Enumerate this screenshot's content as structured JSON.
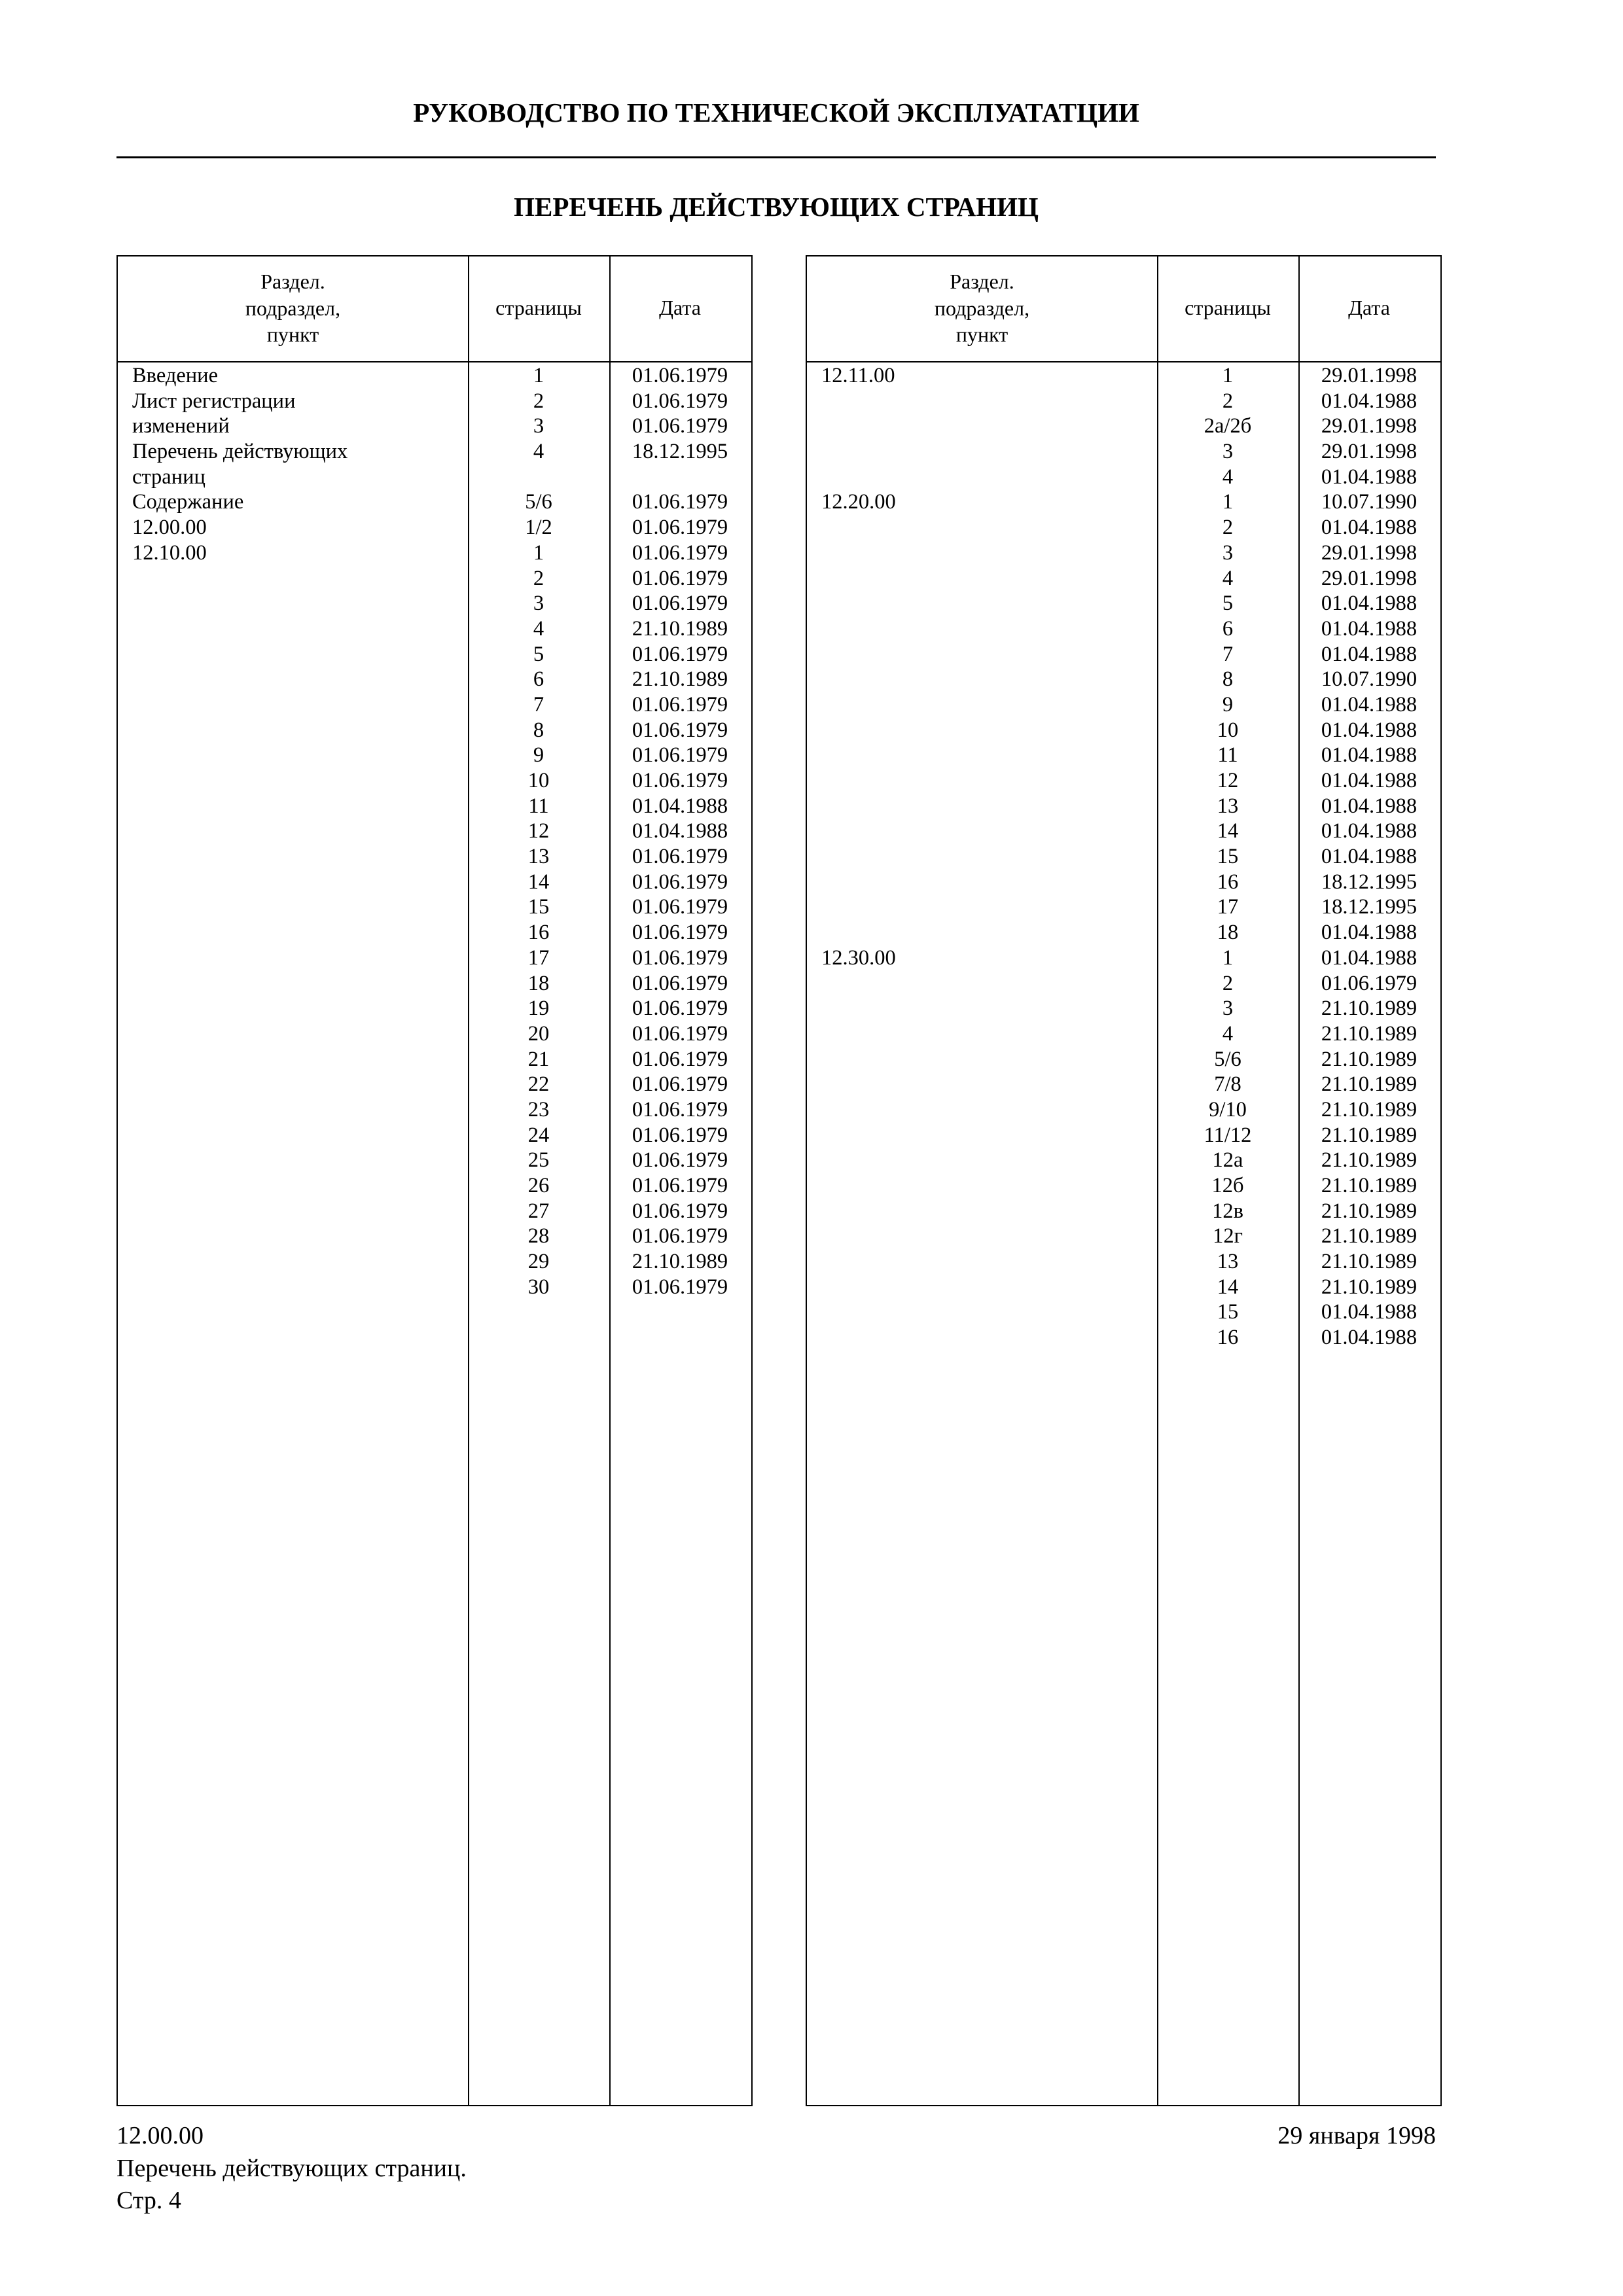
{
  "header": {
    "title": "РУКОВОДСТВО ПО ТЕХНИЧЕСКОЙ ЭКСПЛУАТАТЦИИ",
    "subtitle": "ПЕРЕЧЕНЬ ДЕЙСТВУЮЩИХ СТРАНИЦ"
  },
  "columns": {
    "section_line1": "Раздел.",
    "section_line2": "подраздел,",
    "section_line3": "пункт",
    "pages": "страницы",
    "date": "Дата"
  },
  "left_table": [
    [
      "Введение",
      "1",
      "01.06.1979"
    ],
    [
      "Лист регистрации",
      "2",
      "01.06.1979"
    ],
    [
      "изменений",
      "3",
      "01.06.1979"
    ],
    [
      "Перечень действующих",
      "4",
      "18.12.1995"
    ],
    [
      "страниц",
      "",
      ""
    ],
    [
      "Содержание",
      "5/6",
      "01.06.1979"
    ],
    [
      "12.00.00",
      "1/2",
      "01.06.1979"
    ],
    [
      "12.10.00",
      "1",
      "01.06.1979"
    ],
    [
      "",
      "2",
      "01.06.1979"
    ],
    [
      "",
      "3",
      "01.06.1979"
    ],
    [
      "",
      "4",
      "21.10.1989"
    ],
    [
      "",
      "5",
      "01.06.1979"
    ],
    [
      "",
      "6",
      "21.10.1989"
    ],
    [
      "",
      "7",
      "01.06.1979"
    ],
    [
      "",
      "8",
      "01.06.1979"
    ],
    [
      "",
      "9",
      "01.06.1979"
    ],
    [
      "",
      "10",
      "01.06.1979"
    ],
    [
      "",
      "11",
      "01.04.1988"
    ],
    [
      "",
      "12",
      "01.04.1988"
    ],
    [
      "",
      "13",
      "01.06.1979"
    ],
    [
      "",
      "14",
      "01.06.1979"
    ],
    [
      "",
      "15",
      "01.06.1979"
    ],
    [
      "",
      "16",
      "01.06.1979"
    ],
    [
      "",
      "17",
      "01.06.1979"
    ],
    [
      "",
      "18",
      "01.06.1979"
    ],
    [
      "",
      "19",
      "01.06.1979"
    ],
    [
      "",
      "20",
      "01.06.1979"
    ],
    [
      "",
      "21",
      "01.06.1979"
    ],
    [
      "",
      "22",
      "01.06.1979"
    ],
    [
      "",
      "23",
      "01.06.1979"
    ],
    [
      "",
      "24",
      "01.06.1979"
    ],
    [
      "",
      "25",
      "01.06.1979"
    ],
    [
      "",
      "26",
      "01.06.1979"
    ],
    [
      "",
      "27",
      "01.06.1979"
    ],
    [
      "",
      "28",
      "01.06.1979"
    ],
    [
      "",
      "29",
      "21.10.1989"
    ],
    [
      "",
      "30",
      "01.06.1979"
    ]
  ],
  "right_table": [
    [
      "12.11.00",
      "1",
      "29.01.1998"
    ],
    [
      "",
      "2",
      "01.04.1988"
    ],
    [
      "",
      "2а/2б",
      "29.01.1998"
    ],
    [
      "",
      "3",
      "29.01.1998"
    ],
    [
      "",
      "4",
      "01.04.1988"
    ],
    [
      "12.20.00",
      "1",
      "10.07.1990"
    ],
    [
      "",
      "2",
      "01.04.1988"
    ],
    [
      "",
      "3",
      "29.01.1998"
    ],
    [
      "",
      "4",
      "29.01.1998"
    ],
    [
      "",
      "5",
      "01.04.1988"
    ],
    [
      "",
      "6",
      "01.04.1988"
    ],
    [
      "",
      "7",
      "01.04.1988"
    ],
    [
      "",
      "8",
      "10.07.1990"
    ],
    [
      "",
      "9",
      "01.04.1988"
    ],
    [
      "",
      "10",
      "01.04.1988"
    ],
    [
      "",
      "11",
      "01.04.1988"
    ],
    [
      "",
      "12",
      "01.04.1988"
    ],
    [
      "",
      "13",
      "01.04.1988"
    ],
    [
      "",
      "14",
      "01.04.1988"
    ],
    [
      "",
      "15",
      "01.04.1988"
    ],
    [
      "",
      "16",
      "18.12.1995"
    ],
    [
      "",
      "17",
      "18.12.1995"
    ],
    [
      "",
      "18",
      "01.04.1988"
    ],
    [
      "12.30.00",
      "1",
      "01.04.1988"
    ],
    [
      "",
      "2",
      "01.06.1979"
    ],
    [
      "",
      "3",
      "21.10.1989"
    ],
    [
      "",
      "4",
      "21.10.1989"
    ],
    [
      "",
      "5/6",
      "21.10.1989"
    ],
    [
      "",
      "7/8",
      "21.10.1989"
    ],
    [
      "",
      "9/10",
      "21.10.1989"
    ],
    [
      "",
      "11/12",
      "21.10.1989"
    ],
    [
      "",
      "12а",
      "21.10.1989"
    ],
    [
      "",
      "12б",
      "21.10.1989"
    ],
    [
      "",
      "12в",
      "21.10.1989"
    ],
    [
      "",
      "12г",
      "21.10.1989"
    ],
    [
      "",
      "13",
      "21.10.1989"
    ],
    [
      "",
      "14",
      "21.10.1989"
    ],
    [
      "",
      "15",
      "01.04.1988"
    ],
    [
      "",
      "16",
      "01.04.1988"
    ]
  ],
  "footer": {
    "section": "12.00.00",
    "doc_name": "Перечень действующих страниц.",
    "page": "Стр. 4",
    "date": "29 января 1998"
  }
}
